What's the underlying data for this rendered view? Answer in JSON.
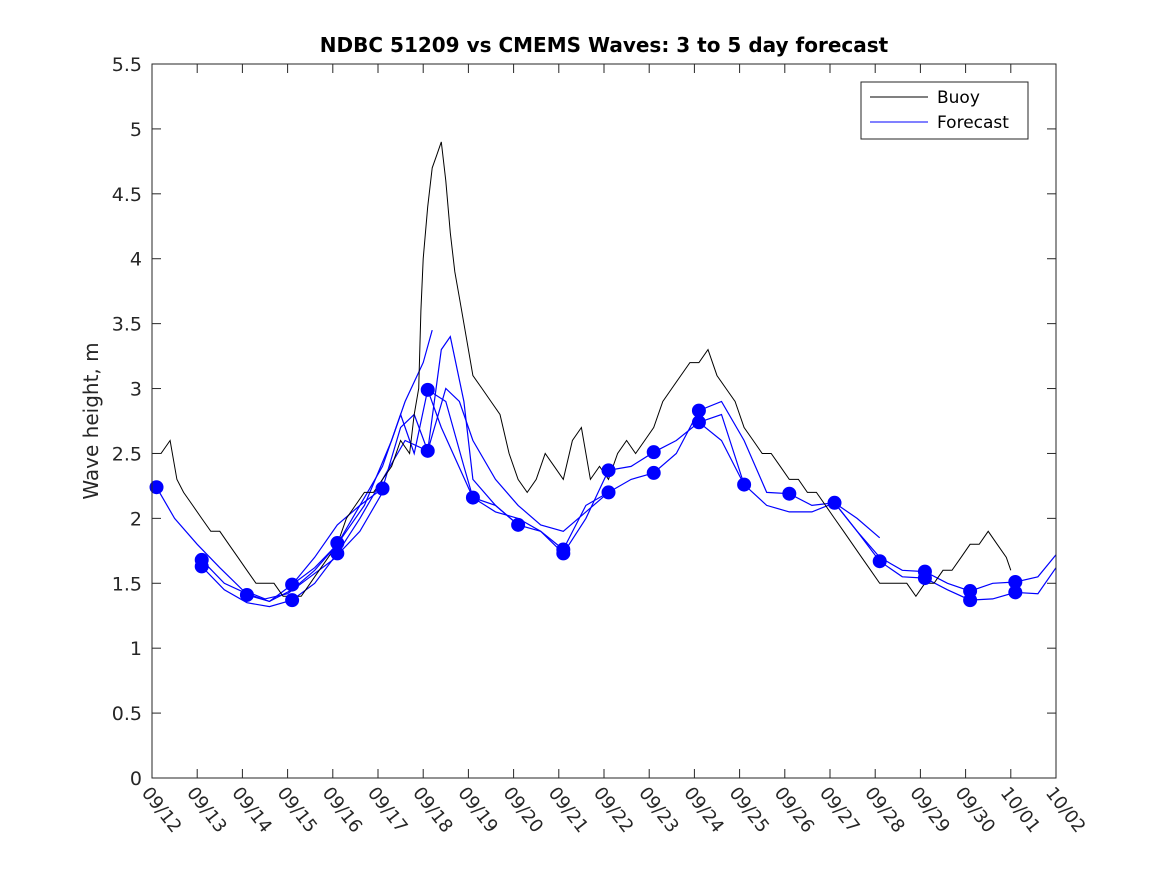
{
  "chart_data": {
    "type": "line",
    "title": "NDBC 51209 vs CMEMS Waves: 3 to 5 day forecast",
    "xlabel": "",
    "ylabel": "Wave height, m",
    "xlim": [
      0,
      20
    ],
    "ylim": [
      0,
      5.5
    ],
    "x_tick_labels": [
      "09/12",
      "09/13",
      "09/14",
      "09/15",
      "09/16",
      "09/17",
      "09/18",
      "09/19",
      "09/20",
      "09/21",
      "09/22",
      "09/23",
      "09/24",
      "09/25",
      "09/26",
      "09/27",
      "09/28",
      "09/29",
      "09/30",
      "10/01",
      "10/02"
    ],
    "y_tick_labels": [
      "0",
      "0.5",
      "1",
      "1.5",
      "2",
      "2.5",
      "3",
      "3.5",
      "4",
      "4.5",
      "5",
      "5.5"
    ],
    "legend": {
      "position": "top-right",
      "entries": [
        {
          "label": "Buoy",
          "color": "#000000"
        },
        {
          "label": "Forecast",
          "color": "#0000ff"
        }
      ]
    },
    "series": [
      {
        "name": "Buoy",
        "color": "#000000",
        "points": [
          [
            0.0,
            2.5
          ],
          [
            0.2,
            2.5
          ],
          [
            0.4,
            2.6
          ],
          [
            0.55,
            2.3
          ],
          [
            0.7,
            2.2
          ],
          [
            0.9,
            2.1
          ],
          [
            1.1,
            2.0
          ],
          [
            1.3,
            1.9
          ],
          [
            1.5,
            1.9
          ],
          [
            1.7,
            1.8
          ],
          [
            1.9,
            1.7
          ],
          [
            2.1,
            1.6
          ],
          [
            2.3,
            1.5
          ],
          [
            2.5,
            1.5
          ],
          [
            2.7,
            1.5
          ],
          [
            2.9,
            1.4
          ],
          [
            3.1,
            1.4
          ],
          [
            3.3,
            1.4
          ],
          [
            3.5,
            1.5
          ],
          [
            3.7,
            1.6
          ],
          [
            3.9,
            1.7
          ],
          [
            4.1,
            1.8
          ],
          [
            4.3,
            2.0
          ],
          [
            4.5,
            2.1
          ],
          [
            4.7,
            2.2
          ],
          [
            4.9,
            2.2
          ],
          [
            5.1,
            2.3
          ],
          [
            5.3,
            2.4
          ],
          [
            5.5,
            2.6
          ],
          [
            5.7,
            2.5
          ],
          [
            5.8,
            2.8
          ],
          [
            5.9,
            3.0
          ],
          [
            5.95,
            3.6
          ],
          [
            6.0,
            4.0
          ],
          [
            6.1,
            4.4
          ],
          [
            6.2,
            4.7
          ],
          [
            6.3,
            4.8
          ],
          [
            6.4,
            4.9
          ],
          [
            6.5,
            4.6
          ],
          [
            6.6,
            4.2
          ],
          [
            6.7,
            3.9
          ],
          [
            6.8,
            3.7
          ],
          [
            6.9,
            3.5
          ],
          [
            7.0,
            3.3
          ],
          [
            7.1,
            3.1
          ],
          [
            7.3,
            3.0
          ],
          [
            7.5,
            2.9
          ],
          [
            7.7,
            2.8
          ],
          [
            7.9,
            2.5
          ],
          [
            8.1,
            2.3
          ],
          [
            8.3,
            2.2
          ],
          [
            8.5,
            2.3
          ],
          [
            8.7,
            2.5
          ],
          [
            8.9,
            2.4
          ],
          [
            9.1,
            2.3
          ],
          [
            9.3,
            2.6
          ],
          [
            9.5,
            2.7
          ],
          [
            9.7,
            2.3
          ],
          [
            9.9,
            2.4
          ],
          [
            10.1,
            2.3
          ],
          [
            10.3,
            2.5
          ],
          [
            10.5,
            2.6
          ],
          [
            10.7,
            2.5
          ],
          [
            10.9,
            2.6
          ],
          [
            11.1,
            2.7
          ],
          [
            11.3,
            2.9
          ],
          [
            11.5,
            3.0
          ],
          [
            11.7,
            3.1
          ],
          [
            11.9,
            3.2
          ],
          [
            12.1,
            3.2
          ],
          [
            12.3,
            3.3
          ],
          [
            12.5,
            3.1
          ],
          [
            12.7,
            3.0
          ],
          [
            12.9,
            2.9
          ],
          [
            13.1,
            2.7
          ],
          [
            13.3,
            2.6
          ],
          [
            13.5,
            2.5
          ],
          [
            13.7,
            2.5
          ],
          [
            13.9,
            2.4
          ],
          [
            14.1,
            2.3
          ],
          [
            14.3,
            2.3
          ],
          [
            14.5,
            2.2
          ],
          [
            14.7,
            2.2
          ],
          [
            14.9,
            2.1
          ],
          [
            15.1,
            2.0
          ],
          [
            15.3,
            1.9
          ],
          [
            15.5,
            1.8
          ],
          [
            15.7,
            1.7
          ],
          [
            15.9,
            1.6
          ],
          [
            16.1,
            1.5
          ],
          [
            16.3,
            1.5
          ],
          [
            16.5,
            1.5
          ],
          [
            16.7,
            1.5
          ],
          [
            16.9,
            1.4
          ],
          [
            17.1,
            1.5
          ],
          [
            17.3,
            1.5
          ],
          [
            17.5,
            1.6
          ],
          [
            17.7,
            1.6
          ],
          [
            17.9,
            1.7
          ],
          [
            18.1,
            1.8
          ],
          [
            18.3,
            1.8
          ],
          [
            18.5,
            1.9
          ],
          [
            18.7,
            1.8
          ],
          [
            18.9,
            1.7
          ],
          [
            19.0,
            1.6
          ]
        ]
      },
      {
        "name": "Forecast",
        "color": "#0000ff",
        "marker_points": [
          [
            0.1,
            2.24
          ],
          [
            1.1,
            1.68
          ],
          [
            1.1,
            1.63
          ],
          [
            2.1,
            1.41
          ],
          [
            3.1,
            1.49
          ],
          [
            3.1,
            1.37
          ],
          [
            4.1,
            1.81
          ],
          [
            4.1,
            1.73
          ],
          [
            5.1,
            2.23
          ],
          [
            6.1,
            2.99
          ],
          [
            6.1,
            2.52
          ],
          [
            7.1,
            2.16
          ],
          [
            8.1,
            1.95
          ],
          [
            9.1,
            1.76
          ],
          [
            9.1,
            1.73
          ],
          [
            10.1,
            2.37
          ],
          [
            10.1,
            2.2
          ],
          [
            11.1,
            2.51
          ],
          [
            11.1,
            2.35
          ],
          [
            12.1,
            2.83
          ],
          [
            12.1,
            2.74
          ],
          [
            13.1,
            2.26
          ],
          [
            14.1,
            2.19
          ],
          [
            15.1,
            2.12
          ],
          [
            16.1,
            1.67
          ],
          [
            17.1,
            1.59
          ],
          [
            17.1,
            1.54
          ],
          [
            18.1,
            1.44
          ],
          [
            18.1,
            1.37
          ],
          [
            19.1,
            1.51
          ],
          [
            19.1,
            1.43
          ]
        ],
        "runs": [
          [
            [
              0.1,
              2.24
            ],
            [
              0.5,
              2.0
            ],
            [
              1.0,
              1.8
            ],
            [
              1.5,
              1.62
            ],
            [
              2.0,
              1.45
            ],
            [
              2.5,
              1.38
            ],
            [
              3.0,
              1.42
            ],
            [
              3.5,
              1.55
            ],
            [
              4.0,
              1.68
            ],
            [
              4.6,
              1.9
            ],
            [
              5.1,
              2.2
            ]
          ],
          [
            [
              1.1,
              1.68
            ],
            [
              1.6,
              1.5
            ],
            [
              2.1,
              1.42
            ],
            [
              2.6,
              1.36
            ],
            [
              3.1,
              1.49
            ],
            [
              3.6,
              1.62
            ],
            [
              4.1,
              1.8
            ],
            [
              4.7,
              2.1
            ],
            [
              5.3,
              2.6
            ],
            [
              5.6,
              2.9
            ],
            [
              6.0,
              3.2
            ],
            [
              6.2,
              3.45
            ]
          ],
          [
            [
              1.1,
              1.63
            ],
            [
              1.6,
              1.45
            ],
            [
              2.1,
              1.35
            ],
            [
              2.6,
              1.32
            ],
            [
              3.1,
              1.37
            ],
            [
              3.6,
              1.5
            ],
            [
              4.1,
              1.73
            ],
            [
              4.6,
              2.0
            ],
            [
              5.1,
              2.3
            ],
            [
              5.6,
              2.6
            ],
            [
              6.1,
              2.52
            ],
            [
              6.4,
              3.3
            ],
            [
              6.6,
              3.4
            ],
            [
              6.9,
              2.9
            ],
            [
              7.1,
              2.3
            ],
            [
              7.6,
              2.1
            ],
            [
              8.1,
              1.95
            ]
          ],
          [
            [
              2.1,
              1.41
            ],
            [
              2.6,
              1.36
            ],
            [
              3.1,
              1.45
            ],
            [
              3.6,
              1.6
            ],
            [
              4.1,
              1.8
            ],
            [
              4.6,
              2.1
            ],
            [
              5.1,
              2.4
            ],
            [
              5.5,
              2.8
            ],
            [
              5.8,
              2.5
            ],
            [
              6.1,
              2.99
            ],
            [
              6.5,
              2.9
            ],
            [
              6.9,
              2.4
            ],
            [
              7.1,
              2.16
            ],
            [
              7.6,
              2.05
            ],
            [
              8.1,
              2.0
            ],
            [
              8.6,
              1.9
            ],
            [
              9.1,
              1.76
            ]
          ],
          [
            [
              3.1,
              1.49
            ],
            [
              3.6,
              1.7
            ],
            [
              4.1,
              1.95
            ],
            [
              4.6,
              2.1
            ],
            [
              5.1,
              2.23
            ],
            [
              5.5,
              2.7
            ],
            [
              5.8,
              2.8
            ],
            [
              6.1,
              2.52
            ],
            [
              6.5,
              3.0
            ],
            [
              6.8,
              2.9
            ],
            [
              7.1,
              2.6
            ],
            [
              7.6,
              2.3
            ],
            [
              8.1,
              2.1
            ],
            [
              8.6,
              1.95
            ],
            [
              9.1,
              1.9
            ],
            [
              9.6,
              2.05
            ],
            [
              10.1,
              2.2
            ]
          ],
          [
            [
              6.1,
              2.99
            ],
            [
              6.4,
              2.7
            ],
            [
              7.1,
              2.16
            ],
            [
              7.6,
              2.1
            ],
            [
              8.1,
              1.95
            ],
            [
              8.6,
              1.9
            ],
            [
              9.1,
              1.73
            ],
            [
              9.6,
              2.0
            ],
            [
              10.1,
              2.37
            ],
            [
              10.6,
              2.4
            ],
            [
              11.1,
              2.51
            ],
            [
              11.6,
              2.6
            ],
            [
              12.1,
              2.74
            ],
            [
              12.6,
              2.6
            ],
            [
              13.1,
              2.26
            ]
          ],
          [
            [
              9.1,
              1.76
            ],
            [
              9.6,
              2.1
            ],
            [
              10.1,
              2.2
            ],
            [
              10.6,
              2.3
            ],
            [
              11.1,
              2.35
            ],
            [
              11.6,
              2.5
            ],
            [
              12.1,
              2.83
            ],
            [
              12.6,
              2.9
            ],
            [
              13.1,
              2.6
            ],
            [
              13.6,
              2.2
            ],
            [
              14.1,
              2.19
            ],
            [
              14.6,
              2.1
            ],
            [
              15.1,
              2.12
            ],
            [
              15.6,
              2.0
            ],
            [
              16.1,
              1.85
            ]
          ],
          [
            [
              12.1,
              2.74
            ],
            [
              12.6,
              2.8
            ],
            [
              13.1,
              2.26
            ],
            [
              13.6,
              2.1
            ],
            [
              14.1,
              2.05
            ],
            [
              14.6,
              2.05
            ],
            [
              15.1,
              2.12
            ],
            [
              15.6,
              1.9
            ],
            [
              16.1,
              1.67
            ],
            [
              16.6,
              1.55
            ],
            [
              17.1,
              1.54
            ],
            [
              17.6,
              1.45
            ],
            [
              18.1,
              1.37
            ],
            [
              18.6,
              1.38
            ],
            [
              19.1,
              1.43
            ],
            [
              19.6,
              1.42
            ],
            [
              20.0,
              1.62
            ]
          ],
          [
            [
              15.1,
              2.12
            ],
            [
              15.6,
              1.9
            ],
            [
              16.1,
              1.7
            ],
            [
              16.6,
              1.6
            ],
            [
              17.1,
              1.59
            ],
            [
              17.6,
              1.5
            ],
            [
              18.1,
              1.44
            ],
            [
              18.6,
              1.5
            ],
            [
              19.1,
              1.51
            ],
            [
              19.6,
              1.55
            ],
            [
              20.0,
              1.72
            ]
          ]
        ]
      }
    ]
  }
}
